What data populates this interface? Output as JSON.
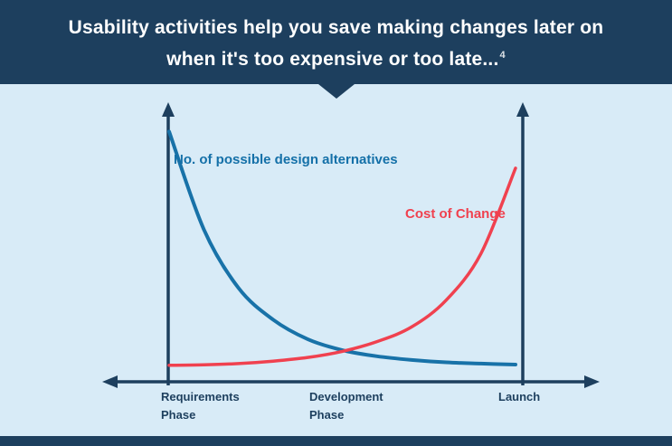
{
  "header": {
    "line1": "Usability activities help you save making changes later on",
    "line2": "when it's too expensive or too late...",
    "footnote": "4",
    "bg_color": "#1d3f5e",
    "text_color": "#ffffff"
  },
  "canvas": {
    "bg_color": "#d8ebf7",
    "footer_color": "#1d3f5e"
  },
  "chart_data": {
    "type": "line",
    "title": "",
    "xlabel": "",
    "ylabel": "",
    "grid": false,
    "legend": "inline-annotations",
    "axis_color": "#1d3f5e",
    "x_range": [
      0,
      100
    ],
    "y_range": [
      0,
      100
    ],
    "x_axis_labels": [
      {
        "lines": [
          "Requirements",
          "Phase"
        ]
      },
      {
        "lines": [
          "Development",
          "Phase"
        ]
      },
      {
        "lines": [
          "Launch"
        ]
      }
    ],
    "series": [
      {
        "name": "No. of possible design alternatives",
        "color": "#1872a8",
        "stroke_width": 4,
        "points": [
          [
            0,
            98
          ],
          [
            10,
            58
          ],
          [
            20,
            34
          ],
          [
            30,
            21
          ],
          [
            40,
            13
          ],
          [
            50,
            8.5
          ],
          [
            60,
            6
          ],
          [
            70,
            4.5
          ],
          [
            80,
            3.5
          ],
          [
            90,
            3
          ],
          [
            100,
            2.6
          ]
        ]
      },
      {
        "name": "Cost of Change",
        "color": "#f0414f",
        "stroke_width": 3.5,
        "points": [
          [
            0,
            2.3
          ],
          [
            10,
            2.5
          ],
          [
            20,
            3
          ],
          [
            30,
            4
          ],
          [
            40,
            5.5
          ],
          [
            50,
            8
          ],
          [
            60,
            12
          ],
          [
            70,
            18
          ],
          [
            80,
            29
          ],
          [
            90,
            48
          ],
          [
            100,
            83
          ]
        ]
      }
    ]
  }
}
